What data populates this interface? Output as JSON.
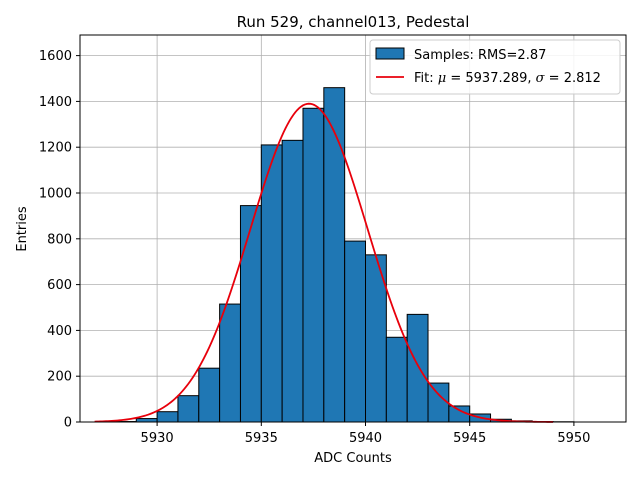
{
  "chart_data": {
    "type": "bar",
    "title": "Run 529, channel013, Pedestal",
    "xlabel": "ADC Counts",
    "ylabel": "Entries",
    "xlim": [
      5926.3,
      5952.5
    ],
    "ylim": [
      0,
      1690
    ],
    "grid": true,
    "legend_position": "top-right",
    "x_ticks": [
      5930,
      5935,
      5940,
      5945,
      5950
    ],
    "y_ticks": [
      0,
      200,
      400,
      600,
      800,
      1000,
      1200,
      1400,
      1600
    ],
    "bins": [
      {
        "start": 5927,
        "end": 5928,
        "count": 0
      },
      {
        "start": 5928,
        "end": 5929,
        "count": 2
      },
      {
        "start": 5929,
        "end": 5930,
        "count": 15
      },
      {
        "start": 5930,
        "end": 5931,
        "count": 45
      },
      {
        "start": 5931,
        "end": 5932,
        "count": 115
      },
      {
        "start": 5932,
        "end": 5933,
        "count": 235
      },
      {
        "start": 5933,
        "end": 5934,
        "count": 515
      },
      {
        "start": 5934,
        "end": 5935,
        "count": 945
      },
      {
        "start": 5935,
        "end": 5936,
        "count": 1210
      },
      {
        "start": 5936,
        "end": 5937,
        "count": 1230
      },
      {
        "start": 5937,
        "end": 5938,
        "count": 1370
      },
      {
        "start": 5938,
        "end": 5939,
        "count": 1460
      },
      {
        "start": 5939,
        "end": 5940,
        "count": 790
      },
      {
        "start": 5940,
        "end": 5941,
        "count": 730
      },
      {
        "start": 5941,
        "end": 5942,
        "count": 370
      },
      {
        "start": 5942,
        "end": 5943,
        "count": 470
      },
      {
        "start": 5943,
        "end": 5944,
        "count": 170
      },
      {
        "start": 5944,
        "end": 5945,
        "count": 70
      },
      {
        "start": 5945,
        "end": 5946,
        "count": 35
      },
      {
        "start": 5946,
        "end": 5947,
        "count": 12
      },
      {
        "start": 5947,
        "end": 5948,
        "count": 5
      },
      {
        "start": 5948,
        "end": 5949,
        "count": 2
      },
      {
        "start": 5949,
        "end": 5950,
        "count": 1
      }
    ],
    "series": [
      {
        "name": "Samples: RMS=2.87",
        "type": "histogram",
        "color": "#1f77b4",
        "edge_color": "#000000"
      },
      {
        "name": "Fit: μ = 5937.289, σ = 2.812",
        "type": "line",
        "color": "#e8000b",
        "mu": 5937.289,
        "sigma": 2.812,
        "amplitude": 1390,
        "x_range": [
          5927,
          5949
        ]
      }
    ],
    "legend": {
      "samples_label": "Samples: RMS=2.87",
      "fit_prefix": "Fit: ",
      "fit_mu_symbol": "μ",
      "fit_mu_value": " = 5937.289, ",
      "fit_sigma_symbol": "σ",
      "fit_sigma_value": " = 2.812"
    }
  }
}
